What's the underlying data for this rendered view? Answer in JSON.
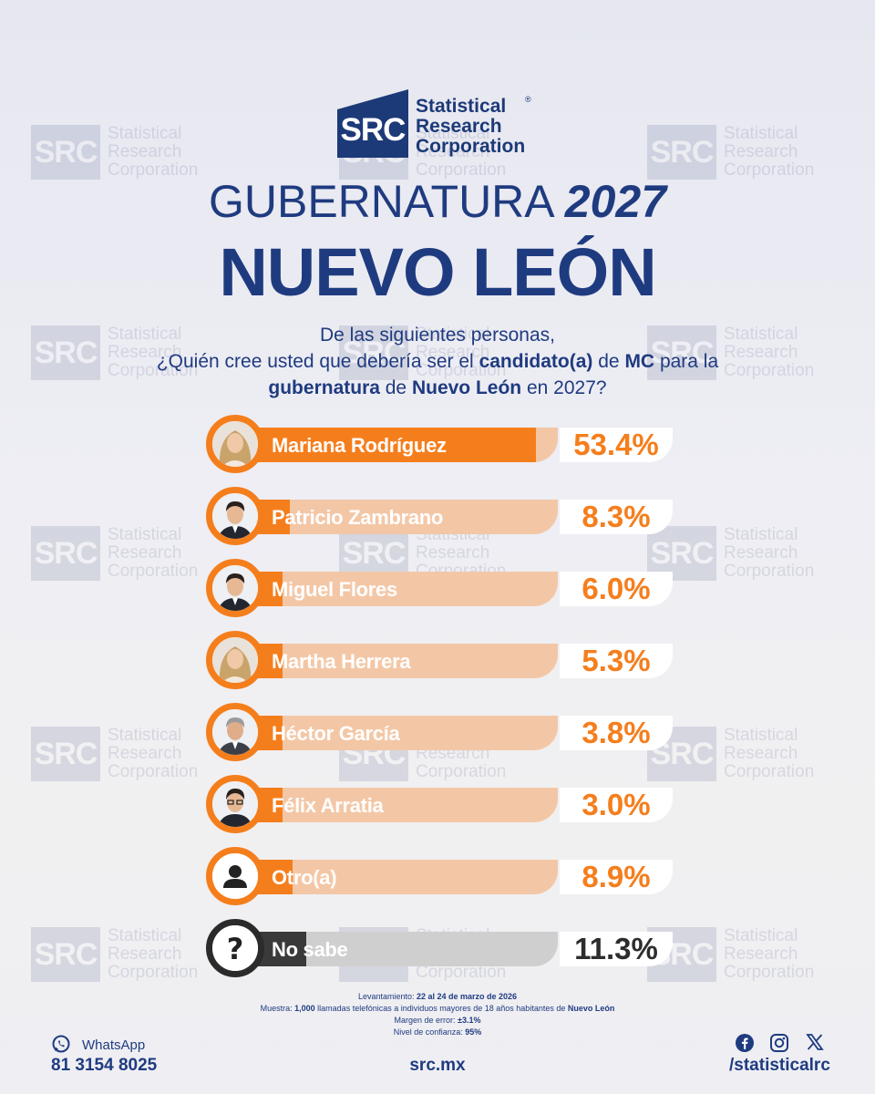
{
  "colors": {
    "primary": "#1f3b80",
    "accent": "#f57e1c",
    "bar_track": "#f3c7a6",
    "neutral": "#3a3a3a"
  },
  "brand": {
    "abbr": "SRC",
    "name_lines": [
      "Statistical",
      "Research",
      "Corporation"
    ],
    "registered": "®"
  },
  "watermark": {
    "abbr": "SRC",
    "text": "Statistical\nResearch\nCorporation"
  },
  "title": {
    "line1_prefix": "GUBERNATURA",
    "line1_year": "2027",
    "line2": "NUEVO LEÓN"
  },
  "question": {
    "line1": "De las siguientes personas,",
    "line2_a": "¿Quién cree usted que debería ser el ",
    "line2_b": "candidato(a)",
    "line2_c": " de ",
    "line2_d": "MC",
    "line2_e": " para la",
    "line3_a": "gubernatura",
    "line3_b": " de ",
    "line3_c": "Nuevo León",
    "line3_d": " en 2027?"
  },
  "chart_data": {
    "type": "bar",
    "orientation": "horizontal",
    "title": "¿Quién cree usted que debería ser el candidato(a) de MC para la gubernatura de Nuevo León en 2027?",
    "unit": "%",
    "xlim": [
      0,
      100
    ],
    "categories": [
      "Mariana Rodríguez",
      "Patricio Zambrano",
      "Miguel Flores",
      "Martha Herrera",
      "Héctor García",
      "Félix Arratia",
      "Otro(a)",
      "No sabe"
    ],
    "values": [
      53.4,
      8.3,
      6.0,
      5.3,
      3.8,
      3.0,
      8.9,
      11.3
    ],
    "labels": [
      "53.4%",
      "8.3%",
      "6.0%",
      "5.3%",
      "3.8%",
      "3.0%",
      "8.9%",
      "11.3%"
    ],
    "avatars": [
      "woman-blonde",
      "man-dark-hair",
      "man-dark-hair",
      "woman-blonde",
      "man-grey-hair",
      "man-glasses",
      "user-icon",
      "question-icon"
    ],
    "highlight": [
      "accent",
      "accent",
      "accent",
      "accent",
      "accent",
      "accent",
      "accent",
      "neutral"
    ]
  },
  "footer": {
    "levantamiento_label": "Levantamiento: ",
    "levantamiento_value": "22 al 24 de marzo de 2026",
    "muestra_label": "Muestra: ",
    "muestra_value": "1,000",
    "muestra_text": " llamadas telefónicas a individuos mayores de 18 años habitantes de ",
    "muestra_place": "Nuevo León",
    "margen_label": "Margen de error: ",
    "margen_value": "±3.1%",
    "confianza_label": "Nivel de confianza: ",
    "confianza_value": "95%",
    "whatsapp_label": "WhatsApp",
    "phone": "81 3154 8025",
    "site": "src.mx",
    "handle": "/statisticalrc",
    "social": [
      "facebook-icon",
      "instagram-icon",
      "x-icon"
    ]
  }
}
